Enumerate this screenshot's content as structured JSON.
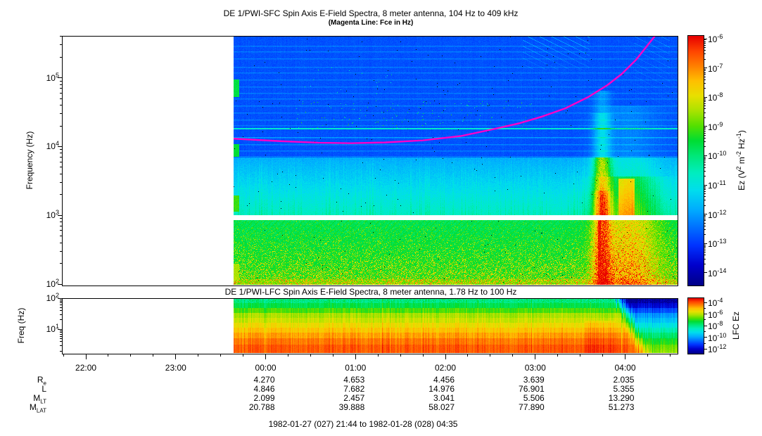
{
  "caption": "1982-01-27 (027) 21:44 to 1982-01-28 (028) 04:35",
  "time_axis": {
    "start": "21:44",
    "end": "04:35",
    "hour_labels": [
      "22:00",
      "23:00",
      "00:00",
      "01:00",
      "02:00",
      "03:00",
      "04:00"
    ],
    "minor_tick_minutes": 15
  },
  "chart_data": [
    {
      "id": "sfc",
      "type": "heatmap",
      "title": "DE 1/PWI-SFC  Spin Axis E-Field Spectra, 8 meter antenna, 104 Hz to 409 kHz",
      "subtitle": "(Magenta Line: Fce in Hz)",
      "ylabel": "Frequency (Hz)",
      "ylim_hz": [
        100,
        409000
      ],
      "ytick_exps": [
        5,
        4,
        3,
        2
      ],
      "x_start": "21:44",
      "x_end": "04:35",
      "data_start": "23:39",
      "colorbar": {
        "tick_exps": [
          -6,
          -7,
          -8,
          -9,
          -10,
          -11,
          -12,
          -13,
          -14
        ],
        "label_parts": [
          {
            "t": "Ez (V"
          },
          {
            "sup": "2"
          },
          {
            "t": " m"
          },
          {
            "sup": "-2"
          },
          {
            "t": " Hz"
          },
          {
            "sup": "-1"
          },
          {
            "t": ")"
          }
        ]
      },
      "bands": [
        {
          "name": "vlf-blue",
          "f_hz": [
            7000,
            409000
          ],
          "level": "low intensity (blue) with horizontal banding"
        },
        {
          "name": "elf-cyan",
          "f_hz": [
            1030,
            7000
          ],
          "level": "moderate intensity (cyan) with vertical streaks"
        },
        {
          "name": "receiver-gap",
          "f_hz": [
            870,
            1030
          ],
          "level": "no data (white)"
        },
        {
          "name": "lf-green",
          "f_hz": [
            100,
            870
          ],
          "level": "high intensity (green-yellow speckle)"
        }
      ],
      "spectral_lines": [
        {
          "f_hz": 18500,
          "color": "cyan",
          "desc": "narrowband emission line"
        }
      ],
      "events": [
        {
          "t": [
            "03:40",
            "03:49"
          ],
          "f_hz": [
            100,
            25000
          ],
          "desc": "intense burst, red core"
        },
        {
          "t": [
            "03:53",
            "04:12"
          ],
          "f_hz": [
            100,
            9000
          ],
          "desc": "strong broadband enhancement"
        }
      ],
      "fce_line": {
        "color": "#ff00c8",
        "points_time_hz": [
          [
            "23:39",
            13000
          ],
          [
            "00:10",
            12000
          ],
          [
            "00:35",
            11400
          ],
          [
            "00:57",
            11200
          ],
          [
            "01:20",
            11500
          ],
          [
            "01:45",
            12300
          ],
          [
            "02:10",
            14200
          ],
          [
            "02:30",
            17500
          ],
          [
            "02:50",
            22000
          ],
          [
            "03:05",
            27500
          ],
          [
            "03:20",
            36000
          ],
          [
            "03:35",
            52000
          ],
          [
            "03:48",
            78000
          ],
          [
            "03:58",
            115000
          ],
          [
            "04:07",
            180000
          ],
          [
            "04:14",
            280000
          ],
          [
            "04:20",
            409000
          ]
        ]
      }
    },
    {
      "id": "lfc",
      "type": "heatmap",
      "title": "DE 1/PWI-LFC  Spin Axis E-Field Spectra, 8 meter antenna, 1.78 Hz to 100 Hz",
      "ylabel": "Freq (Hz)",
      "ylim_hz": [
        1.78,
        100
      ],
      "ytick_exps": [
        2,
        1
      ],
      "data_start": "23:39",
      "colorbar": {
        "label": "LFC Ez",
        "tick_exps": [
          -4,
          -6,
          -8,
          -10,
          -12
        ]
      },
      "profile": "intensity increases toward low frequency: green at top through yellow and orange to red at bottom; spectrum weakens to blue/green after 04:00"
    }
  ],
  "ephemeris": {
    "columns": [
      "00:00",
      "01:00",
      "02:00",
      "03:00",
      "04:00"
    ],
    "rows": [
      {
        "label": "R",
        "sub": "e",
        "values": [
          "4.270",
          "4.653",
          "4.456",
          "3.639",
          "2.035"
        ]
      },
      {
        "label": "L",
        "sub": "",
        "values": [
          "4.846",
          "7.682",
          "14.976",
          "76.901",
          "5.355"
        ]
      },
      {
        "label": "M",
        "sub": "LT",
        "values": [
          "2.099",
          "2.457",
          "3.041",
          "5.506",
          "13.290"
        ]
      },
      {
        "label": "M",
        "sub": "LAT",
        "values": [
          "20.788",
          "39.888",
          "58.027",
          "77.890",
          "51.273"
        ]
      }
    ]
  },
  "colors": {
    "fce_line": "#ff00c8",
    "colormap_low": "#000080",
    "colormap_high": "#e80000",
    "background": "#ffffff"
  }
}
